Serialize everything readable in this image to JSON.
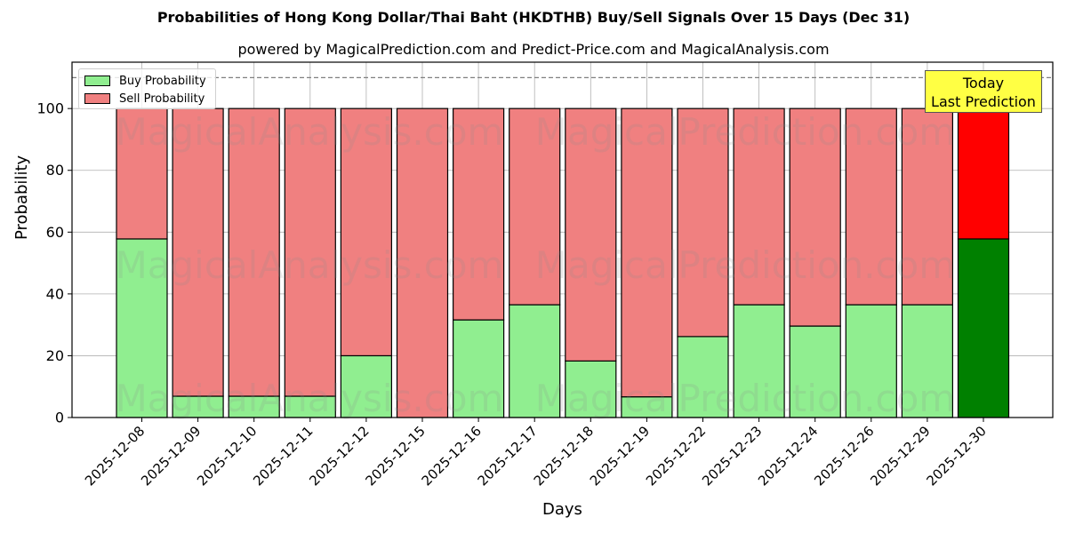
{
  "header": {
    "title": "Probabilities of Hong Kong Dollar/Thai Baht (HKDTHB) Buy/Sell Signals Over 15 Days (Dec 31)",
    "subtitle": "powered by MagicalPrediction.com and Predict-Price.com and MagicalAnalysis.com"
  },
  "legend": {
    "buy_label": "Buy Probability",
    "sell_label": "Sell Probability"
  },
  "annotation": {
    "line1": "Today",
    "line2": "Last Prediction"
  },
  "watermarks": [
    "MagicalAnalysis.com",
    "MagicalPrediction.com"
  ],
  "colors": {
    "buy": "#90ee90",
    "sell": "#f08080",
    "today_buy": "#008000",
    "today_sell": "#ff0000",
    "annotation_bg": "#ffff44"
  },
  "chart_data": {
    "type": "bar",
    "stacked": true,
    "title": "Probabilities of Hong Kong Dollar/Thai Baht (HKDTHB) Buy/Sell Signals Over 15 Days (Dec 31)",
    "subtitle": "powered by MagicalPrediction.com and Predict-Price.com and MagicalAnalysis.com",
    "xlabel": "Days",
    "ylabel": "Probability",
    "ylim": [
      0,
      115
    ],
    "yticks": [
      0,
      20,
      40,
      60,
      80,
      100
    ],
    "grid": true,
    "legend_position": "upper left",
    "reference_line": {
      "y": 110,
      "style": "dashed"
    },
    "categories": [
      "2025-12-08",
      "2025-12-09",
      "2025-12-10",
      "2025-12-11",
      "2025-12-12",
      "2025-12-15",
      "2025-12-16",
      "2025-12-17",
      "2025-12-18",
      "2025-12-19",
      "2025-12-22",
      "2025-12-23",
      "2025-12-24",
      "2025-12-26",
      "2025-12-29",
      "2025-12-30"
    ],
    "series": [
      {
        "name": "Buy Probability",
        "values": [
          57.8,
          6.9,
          6.9,
          6.9,
          20.0,
          0.0,
          31.6,
          36.5,
          18.3,
          6.7,
          26.2,
          36.5,
          29.6,
          36.5,
          36.5,
          57.8
        ]
      },
      {
        "name": "Sell Probability",
        "values": [
          42.2,
          93.1,
          93.1,
          93.1,
          80.0,
          100.0,
          68.4,
          63.5,
          81.7,
          93.3,
          73.8,
          63.5,
          70.4,
          63.5,
          63.5,
          42.2
        ]
      }
    ],
    "highlight": {
      "category": "2025-12-30",
      "label": "Today\nLast Prediction"
    }
  }
}
